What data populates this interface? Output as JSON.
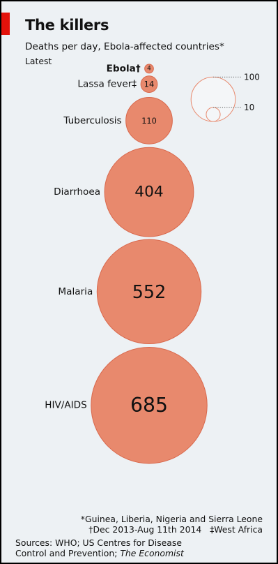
{
  "header": {
    "title": "The killers",
    "subtitle": "Deaths per day, Ebola-affected countries*",
    "latest": "Latest"
  },
  "chart_data": {
    "type": "bubble",
    "title": "The killers",
    "subtitle": "Deaths per day, Ebola-affected countries*",
    "categories": [
      "Ebola†",
      "Lassa fever‡",
      "Tuberculosis",
      "Diarrhoea",
      "Malaria",
      "HIV/AIDS"
    ],
    "values": [
      4,
      14,
      110,
      404,
      552,
      685
    ],
    "size_legend": {
      "values": [
        100,
        10
      ],
      "labels": [
        "100",
        "10"
      ]
    },
    "colors": {
      "bubble": "#e8896d",
      "bubble_stroke": "#d9684c",
      "legend_fill": "#f4f6f8",
      "legend_stroke": "#e8896d"
    }
  },
  "footnotes": {
    "countries": "*Guinea, Liberia, Nigeria and Sierra Leone",
    "ebola_period": "†Dec 2013-Aug 11th 2014",
    "lassa_region": "‡West Africa",
    "sources_line1": "Sources: WHO; US Centres for Disease",
    "sources_line2_prefix": "Control and Prevention; ",
    "sources_line2_italic": "The Economist"
  }
}
